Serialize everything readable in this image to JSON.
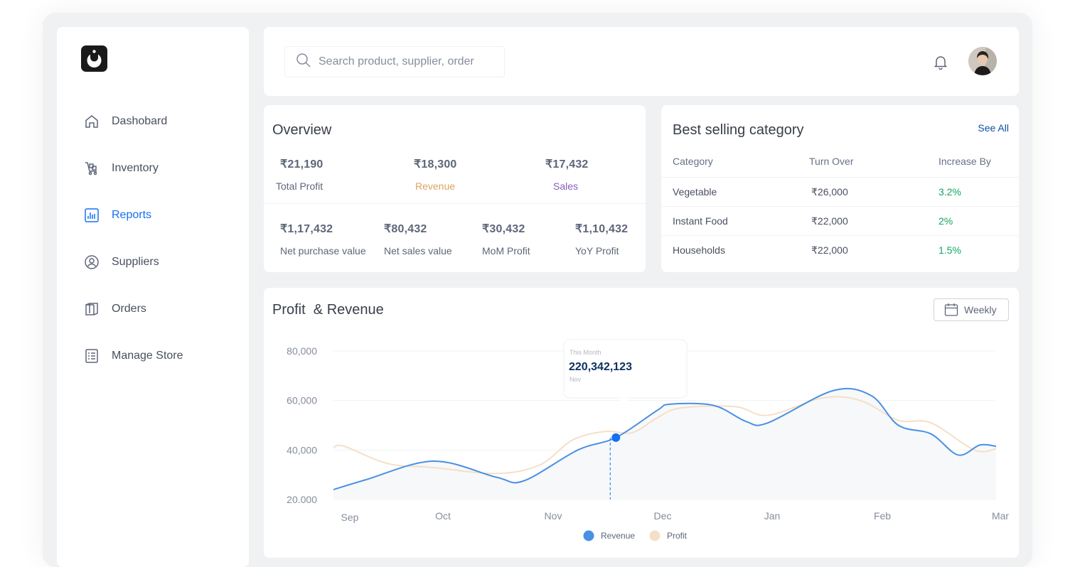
{
  "sidebar": {
    "items": [
      {
        "label": "Dashobard",
        "icon": "home-icon"
      },
      {
        "label": "Inventory",
        "icon": "inventory-icon"
      },
      {
        "label": "Reports",
        "icon": "reports-icon",
        "active": true
      },
      {
        "label": "Suppliers",
        "icon": "user-circle-icon"
      },
      {
        "label": "Orders",
        "icon": "box-icon"
      },
      {
        "label": "Manage Store",
        "icon": "checklist-icon"
      }
    ]
  },
  "header": {
    "search_placeholder": "Search product, supplier, order"
  },
  "overview": {
    "title": "Overview",
    "top": [
      {
        "value": "₹21,190",
        "label": "Total Profit",
        "color": "#48505e"
      },
      {
        "value": "₹18,300",
        "label": "Revenue",
        "color": "#dba362"
      },
      {
        "value": "₹17,432",
        "label": "Sales",
        "color": "#845ebc"
      }
    ],
    "bottom": [
      {
        "value": "₹1,17,432",
        "label": "Net purchase value"
      },
      {
        "value": "₹80,432",
        "label": "Net sales value"
      },
      {
        "value": "₹30,432",
        "label": "MoM Profit"
      },
      {
        "value": "₹1,10,432",
        "label": "YoY Profit"
      }
    ]
  },
  "best_selling": {
    "title": "Best selling category",
    "see_all": "See All",
    "columns": [
      "Category",
      "Turn Over",
      "Increase By"
    ],
    "rows": [
      [
        "Vegetable",
        "₹26,000",
        "3.2%"
      ],
      [
        "Instant Food",
        "₹22,000",
        "2%"
      ],
      [
        "Households",
        "₹22,000",
        "1.5%"
      ]
    ]
  },
  "profit_revenue": {
    "title": "Profit  & Revenue",
    "period_button": "Weekly",
    "tooltip": {
      "caption": "This Month",
      "value": "220,342,123",
      "month": "Nov"
    }
  },
  "colors": {
    "revenue": "#4a90e2",
    "profit": "#f5dfc7",
    "accent": "#1570ef"
  },
  "chart_data": {
    "type": "line",
    "x": [
      "Sep",
      "Oct",
      "Nov",
      "Dec",
      "Jan",
      "Feb",
      "Mar"
    ],
    "ylim": [
      20000,
      80000
    ],
    "yticks": [
      "80,000",
      "60,000",
      "40,000",
      "20.000"
    ],
    "series": [
      {
        "name": "Revenue",
        "color": "#4a90e2",
        "points": [
          [
            0,
            24000
          ],
          [
            0.3,
            28000
          ],
          [
            0.92,
            35500
          ],
          [
            1.5,
            29000
          ],
          [
            1.75,
            27500
          ],
          [
            2.25,
            40000
          ],
          [
            2.6,
            45000
          ],
          [
            2.98,
            56000
          ],
          [
            3.1,
            58500
          ],
          [
            3.5,
            58000
          ],
          [
            3.8,
            51500
          ],
          [
            4.0,
            51000
          ],
          [
            4.6,
            64000
          ],
          [
            4.95,
            62000
          ],
          [
            5.2,
            50000
          ],
          [
            5.5,
            46500
          ],
          [
            5.75,
            38000
          ],
          [
            5.95,
            42000
          ],
          [
            6.1,
            41500
          ]
        ]
      },
      {
        "name": "Profit",
        "color": "#f5dfc7",
        "points": [
          [
            0,
            41000
          ],
          [
            0.1,
            41500
          ],
          [
            0.5,
            34500
          ],
          [
            0.9,
            33000
          ],
          [
            1.5,
            30500
          ],
          [
            1.9,
            34000
          ],
          [
            2.2,
            44000
          ],
          [
            2.5,
            47500
          ],
          [
            2.75,
            47000
          ],
          [
            2.98,
            53000
          ],
          [
            3.2,
            57000
          ],
          [
            3.7,
            57500
          ],
          [
            4.0,
            54000
          ],
          [
            4.5,
            61000
          ],
          [
            4.85,
            60000
          ],
          [
            5.2,
            52000
          ],
          [
            5.5,
            51000
          ],
          [
            5.9,
            40000
          ],
          [
            6.1,
            40500
          ]
        ]
      }
    ],
    "highlight": {
      "series": "Revenue",
      "x": 2.6,
      "y": 45000
    }
  }
}
